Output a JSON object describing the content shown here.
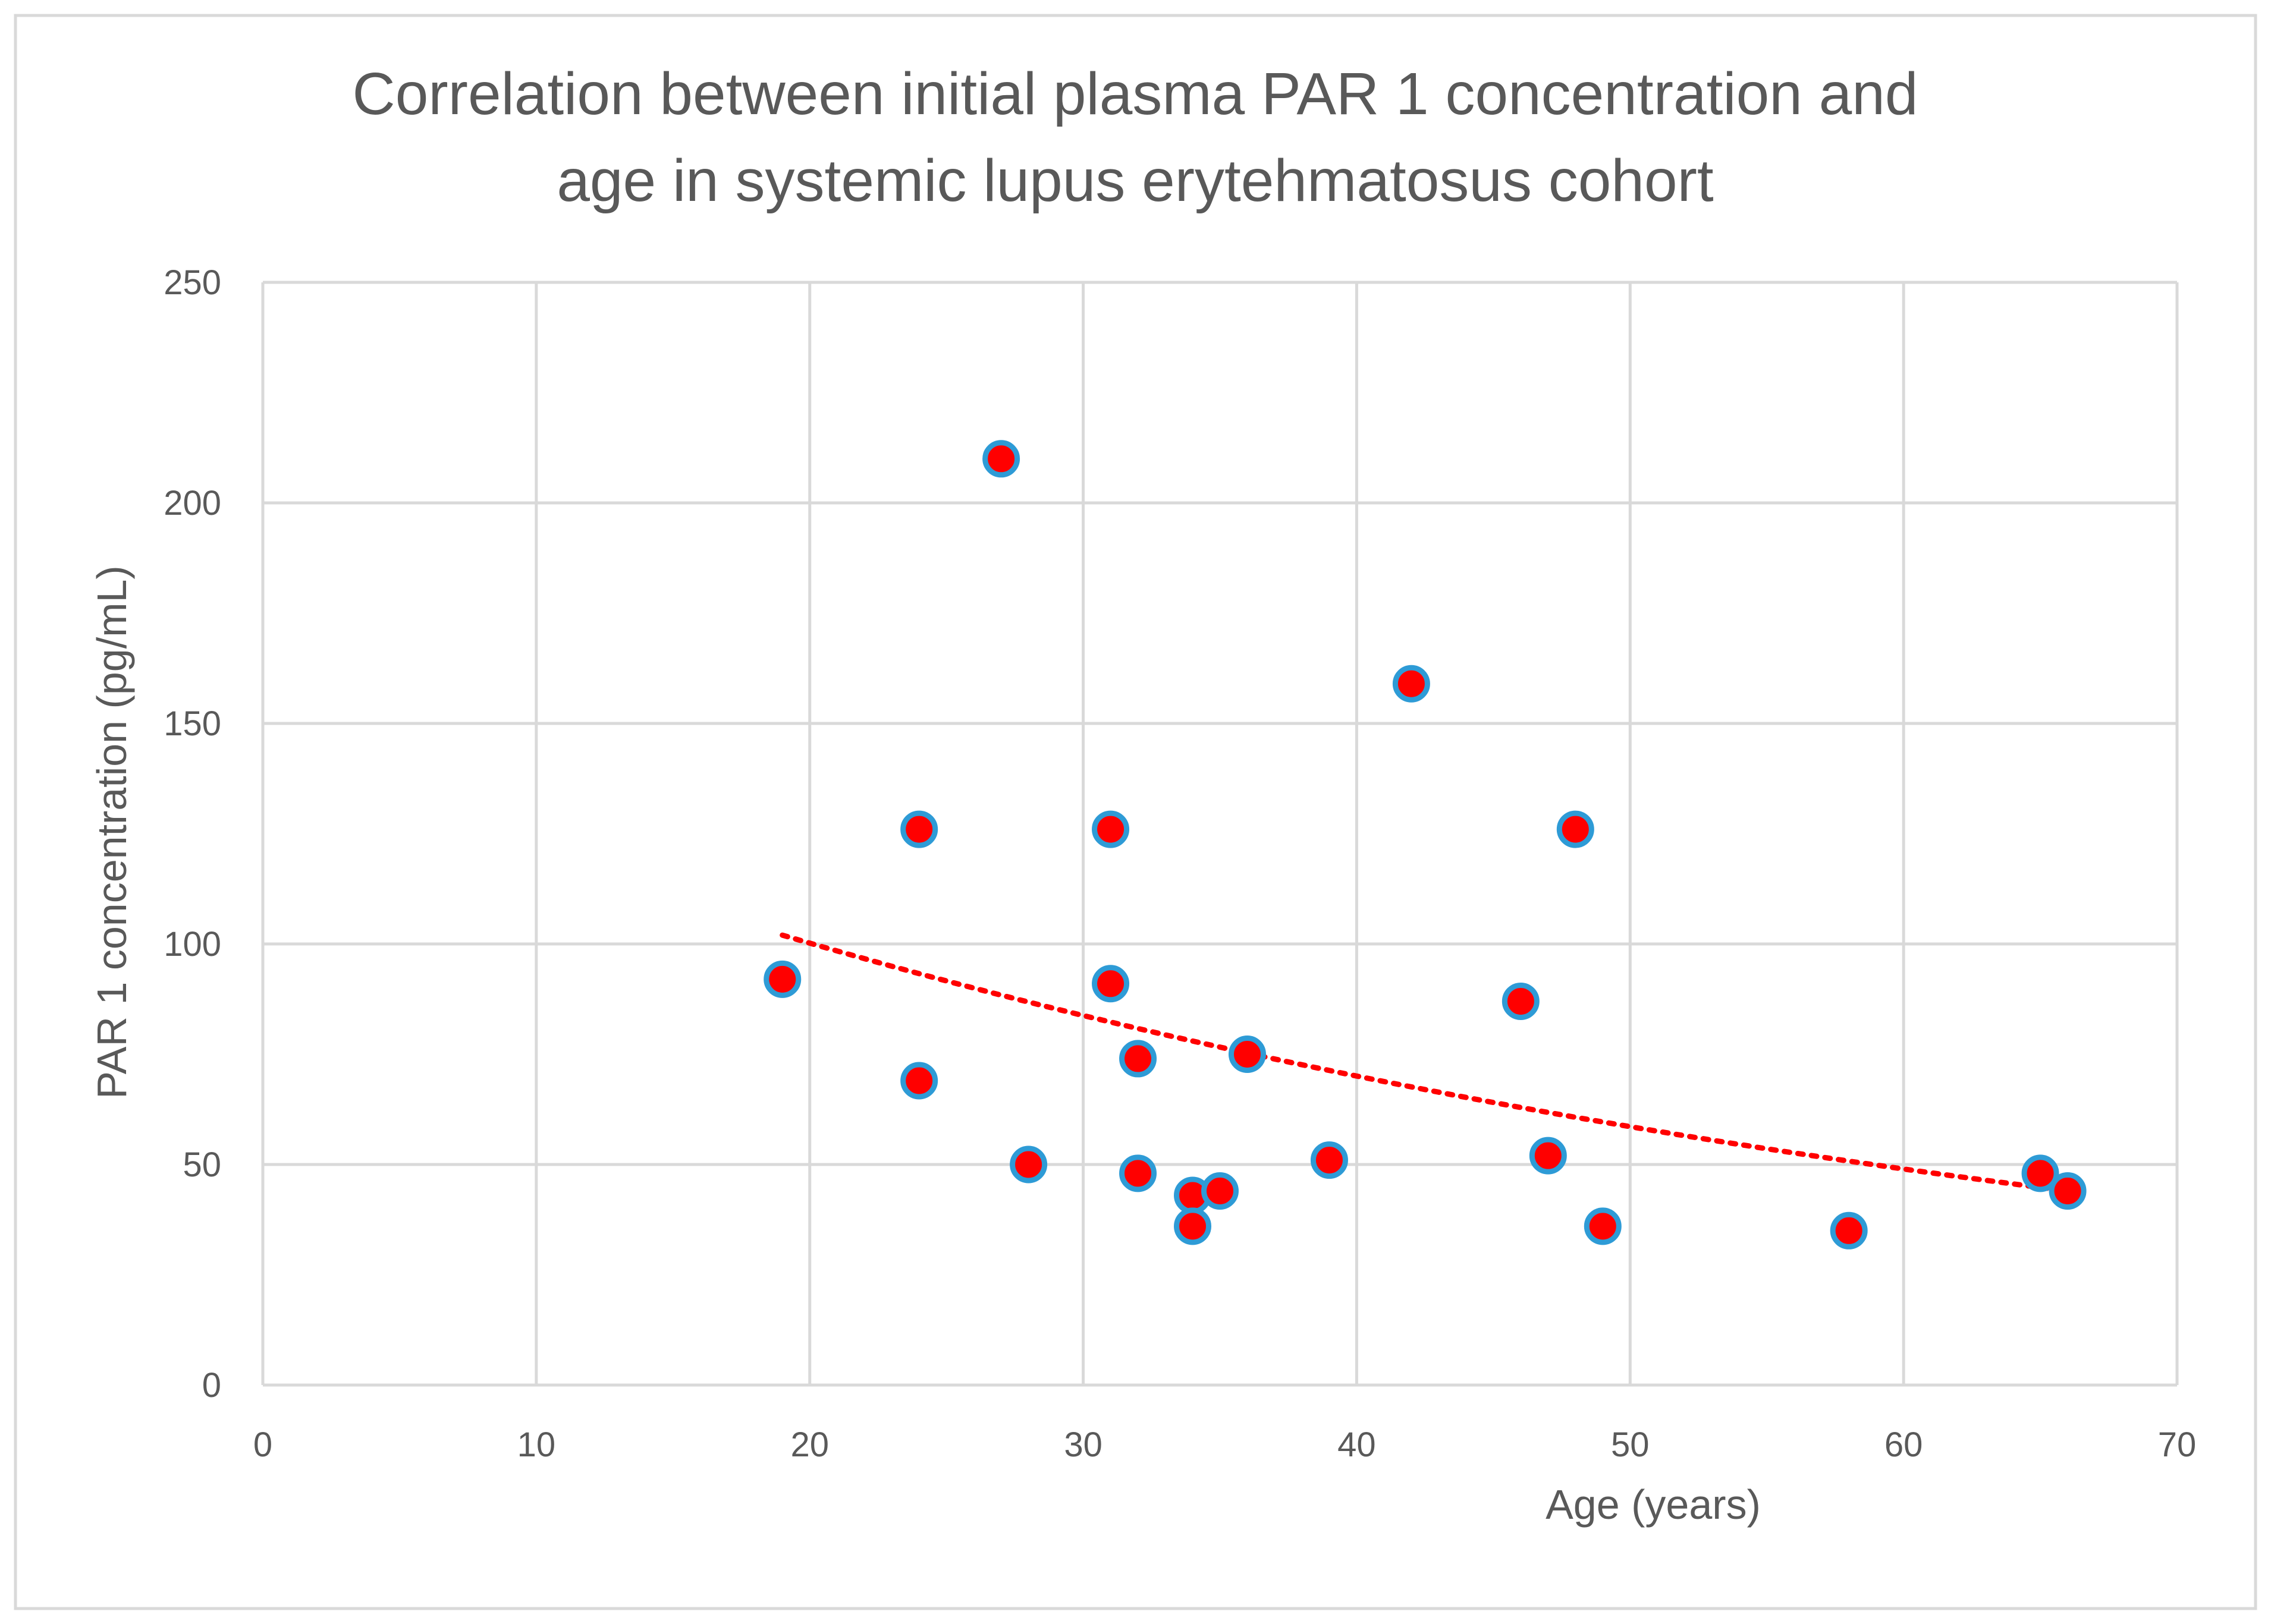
{
  "chart_data": {
    "type": "scatter",
    "title_lines": [
      "Correlation between initial plasma PAR 1 concentration and",
      "age in systemic lupus erytehmatosus cohort"
    ],
    "xlabel": "Age (years)",
    "ylabel": "PAR  1 concentration (pg/mL)",
    "xlim": [
      0,
      70
    ],
    "ylim": [
      0,
      250
    ],
    "x_ticks": [
      0,
      10,
      20,
      30,
      40,
      50,
      60,
      70
    ],
    "y_ticks": [
      0,
      50,
      100,
      150,
      200,
      250
    ],
    "grid": true,
    "series": [
      {
        "name": "PAR 1 concentration",
        "marker_color": "#ff0000",
        "marker_edge_color": "#2e9bd6",
        "points": [
          {
            "x": 19,
            "y": 92
          },
          {
            "x": 24,
            "y": 126
          },
          {
            "x": 24,
            "y": 69
          },
          {
            "x": 27,
            "y": 210
          },
          {
            "x": 28,
            "y": 50
          },
          {
            "x": 31,
            "y": 126
          },
          {
            "x": 31,
            "y": 91
          },
          {
            "x": 32,
            "y": 74
          },
          {
            "x": 32,
            "y": 48
          },
          {
            "x": 34,
            "y": 43
          },
          {
            "x": 34,
            "y": 36
          },
          {
            "x": 35,
            "y": 44
          },
          {
            "x": 36,
            "y": 75
          },
          {
            "x": 39,
            "y": 51
          },
          {
            "x": 42,
            "y": 159
          },
          {
            "x": 46,
            "y": 87
          },
          {
            "x": 47,
            "y": 52
          },
          {
            "x": 48,
            "y": 126
          },
          {
            "x": 49,
            "y": 36
          },
          {
            "x": 58,
            "y": 35
          },
          {
            "x": 65,
            "y": 48
          },
          {
            "x": 66,
            "y": 44
          }
        ]
      }
    ],
    "trendline": {
      "type": "exponential",
      "style": "dotted",
      "color": "#ff0000",
      "from": {
        "x": 19,
        "y": 102
      },
      "to": {
        "x": 66,
        "y": 44
      }
    },
    "colors": {
      "grid": "#d9d9d9",
      "text": "#595959",
      "border": "#d9d9d9"
    }
  }
}
